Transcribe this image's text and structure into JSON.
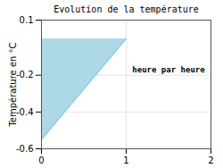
{
  "chart_data": {
    "type": "area",
    "title": "Evolution de la température",
    "ylabel": "Température en °C",
    "series": [
      {
        "type": "area",
        "x": [
          0,
          0,
          1
        ],
        "values": [
          0,
          -0.55,
          0
        ],
        "color": "#add8e6"
      },
      {
        "type": "line",
        "x": [
          0,
          1
        ],
        "values": [
          -0.55,
          0
        ],
        "color": "#7ec8e3"
      }
    ],
    "annotations": [
      {
        "text": "heure par heure",
        "x": 1.5,
        "y": -0.17
      }
    ],
    "xlim": [
      0,
      2
    ],
    "ylim": [
      -0.6,
      0.1
    ],
    "xticks": [
      0,
      1,
      2
    ],
    "yticks": [
      0.1,
      -0.2,
      -0.4,
      -0.6
    ],
    "grid": true
  }
}
